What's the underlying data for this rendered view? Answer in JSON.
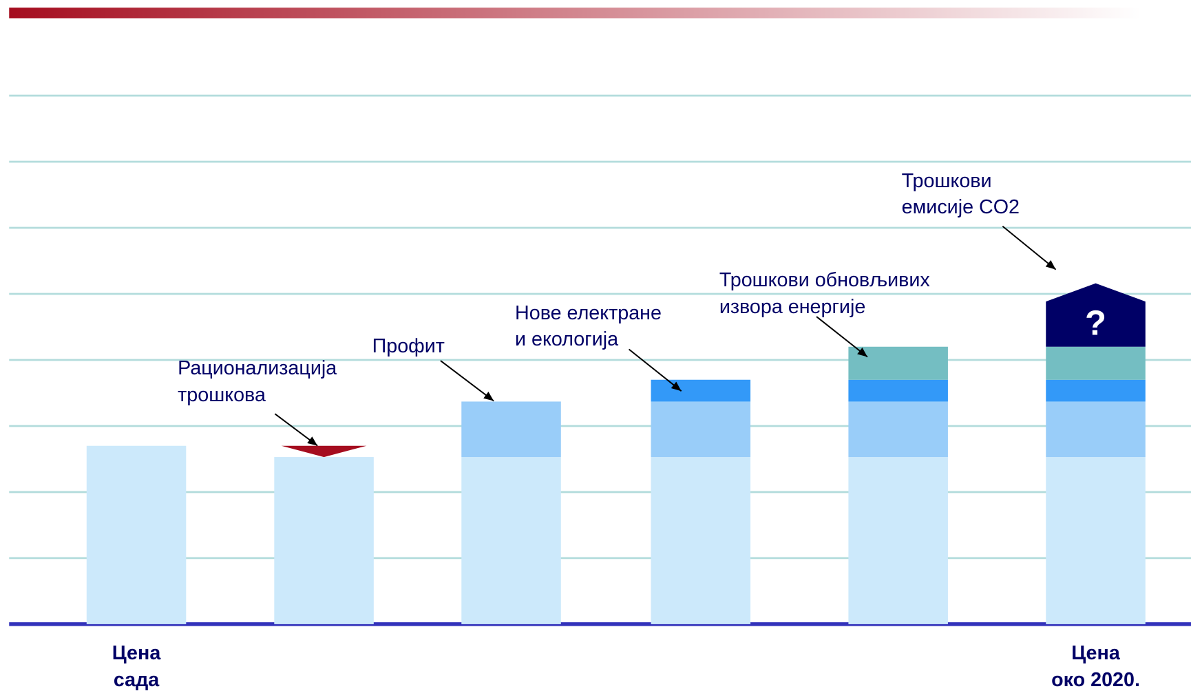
{
  "chart_data": {
    "type": "bar",
    "stacked": true,
    "grid": true,
    "categories": [
      "Цена\nсада",
      null,
      null,
      null,
      null,
      "Цена\nоко 2020."
    ],
    "ylim": [
      0,
      8
    ],
    "yticks": [
      0,
      1,
      2,
      3,
      4,
      5,
      6,
      7,
      8
    ],
    "series": [
      {
        "color": "#cce9fb",
        "values": [
          2.7,
          2.53,
          2.53,
          2.53,
          2.53,
          2.53
        ]
      },
      {
        "name": "Рационализација\nтрошкова",
        "color": "#a50d1f",
        "shape": "triangle-down",
        "values": [
          null,
          0.17,
          null,
          null,
          null,
          null
        ]
      },
      {
        "name": "Профит",
        "color": "#99cdf9",
        "values": [
          null,
          null,
          0.84,
          0.84,
          0.84,
          0.84
        ]
      },
      {
        "name": "Нове електране\nи екологија",
        "color": "#3399f8",
        "values": [
          null,
          null,
          null,
          0.33,
          0.33,
          0.33
        ]
      },
      {
        "name": "Трошкови обновљивих\nизвора енергије",
        "color": "#74bec2",
        "values": [
          null,
          null,
          null,
          null,
          0.5,
          0.5
        ]
      },
      {
        "name": "Трошкови\nемисије CO2",
        "color": "#000066",
        "shape": "pentagon",
        "mark_label": "?",
        "values": [
          null,
          null,
          null,
          null,
          null,
          0.96
        ]
      }
    ]
  }
}
